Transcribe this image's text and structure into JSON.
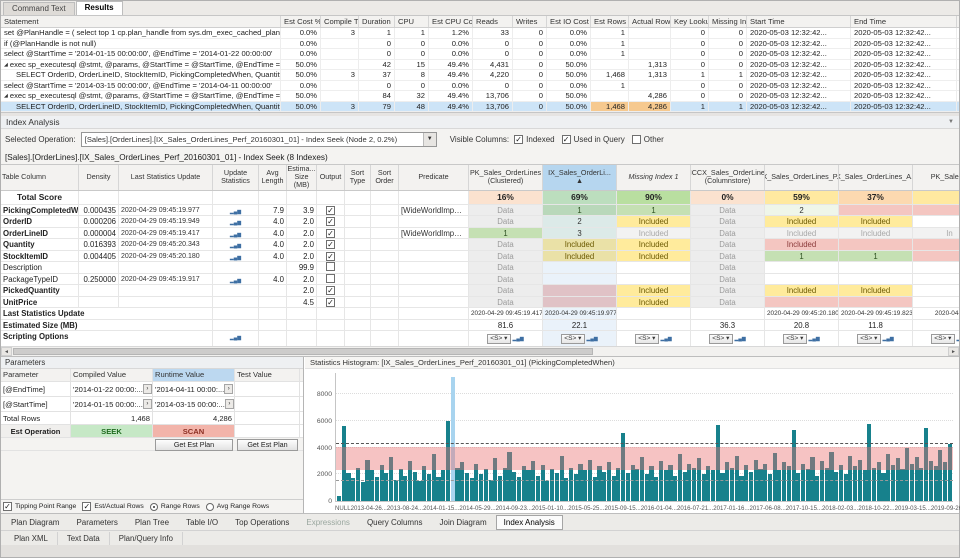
{
  "doc_tabs": {
    "items": [
      "Command Text",
      "Results"
    ],
    "active": "Results"
  },
  "statement_grid": {
    "columns": [
      "Statement",
      "Est Cost %",
      "Compile Time",
      "Duration",
      "CPU",
      "Est CPU Cost %",
      "Reads",
      "Writes",
      "Est IO Cost %",
      "Est Rows",
      "Actual Rows",
      "Key Lookups",
      "Missing Ind...",
      "Start Time",
      "End Time"
    ],
    "rows": [
      {
        "stmt": "set @PlanHandle = ( select top 1 cp.plan_handle from sys.dm_exec_cached_plans AS cp cross apply sys.dm_e...",
        "vals": [
          "0.0%",
          "3",
          "1",
          "1",
          "1.2%",
          "33",
          "0",
          "0.0%",
          "1",
          "",
          "0",
          "0",
          "2020-05-03 12:32:42...",
          "2020-05-03 12:32:42..."
        ]
      },
      {
        "stmt": "if (@PlanHandle is not null)",
        "vals": [
          "0.0%",
          "",
          "0",
          "0",
          "0.0%",
          "0",
          "0",
          "0.0%",
          "1",
          "",
          "0",
          "0",
          "2020-05-03 12:32:42...",
          "2020-05-03 12:32:42..."
        ]
      },
      {
        "stmt": "select @StartTime = '2014-01-15 00:00:00', @EndTime = '2014-01-22 00:00:00'",
        "vals": [
          "0.0%",
          "",
          "0",
          "0",
          "0.0%",
          "0",
          "0",
          "0.0%",
          "1",
          "",
          "0",
          "0",
          "2020-05-03 12:32:42...",
          "2020-05-03 12:32:42..."
        ]
      },
      {
        "stmt": "exec sp_executesql @stmt, @params, @StartTime = @StartTime, @EndTime = @EndTime",
        "expander": true,
        "vals": [
          "50.0%",
          "",
          "42",
          "15",
          "49.4%",
          "4,431",
          "0",
          "50.0%",
          "",
          "1,313",
          "0",
          "0",
          "2020-05-03 12:32:42...",
          "2020-05-03 12:32:42..."
        ]
      },
      {
        "stmt": "SELECT OrderID, OrderLineID, StockItemID, PickingCompletedWhen, Quantity, PickedQuantity, UnitPrice F...",
        "indent": 1,
        "vals": [
          "50.0%",
          "3",
          "37",
          "8",
          "49.4%",
          "4,220",
          "0",
          "50.0%",
          "1,468",
          "1,313",
          "1",
          "1",
          "2020-05-03 12:32:42...",
          "2020-05-03 12:32:42..."
        ]
      },
      {
        "stmt": "select @StartTime = '2014-03-15 00:00:00', @EndTime = '2014-04-11 00:00:00'",
        "vals": [
          "0.0%",
          "",
          "0",
          "0",
          "0.0%",
          "0",
          "0",
          "0.0%",
          "1",
          "",
          "0",
          "0",
          "2020-05-03 12:32:42...",
          "2020-05-03 12:32:42..."
        ]
      },
      {
        "stmt": "exec sp_executesql @stmt, @params, @StartTime = @StartTime, @EndTime = @EndTime",
        "expander": true,
        "vals": [
          "50.0%",
          "",
          "84",
          "32",
          "49.4%",
          "13,706",
          "0",
          "50.0%",
          "",
          "4,286",
          "0",
          "0",
          "2020-05-03 12:32:42...",
          "2020-05-03 12:32:42..."
        ]
      },
      {
        "stmt": "SELECT OrderID, OrderLineID, StockItemID, PickingCompletedWhen, Quantity, PickedQuantity, UnitPrice F...",
        "indent": 1,
        "selected": true,
        "hl_cols": [
          8,
          9
        ],
        "vals": [
          "50.0%",
          "3",
          "79",
          "48",
          "49.4%",
          "13,706",
          "0",
          "50.0%",
          "1,468",
          "4,286",
          "1",
          "1",
          "2020-05-03 12:32:42...",
          "2020-05-03 12:32:42..."
        ]
      }
    ]
  },
  "index_analysis": {
    "title": "Index Analysis",
    "selected_operation_label": "Selected Operation:",
    "selected_operation": "[Sales].[OrderLines].[IX_Sales_OrderLines_Perf_20160301_01] - Index Seek (Node 2,  0.2%)",
    "visible_columns_label": "Visible Columns:",
    "visible_columns": [
      {
        "label": "Indexed",
        "checked": true
      },
      {
        "label": "Used in Query",
        "checked": true
      },
      {
        "label": "Other",
        "checked": false
      }
    ],
    "subtitle": "[Sales].[OrderLines].[IX_Sales_OrderLines_Perf_20160301_01] - Index Seek (8 Indexes)",
    "left_columns": [
      "Table Column",
      "Density",
      "Last Statistics Update",
      "Update Statistics",
      "Avg Length",
      "Estima... Size (MB)",
      "Output",
      "Sort Type",
      "Sort Order",
      "Predicate"
    ],
    "total_score_label": "Total Score",
    "indexes": [
      {
        "name": "PK_Sales_OrderLines (Clustered)",
        "score": "16%",
        "score_color": "#fbe2cf",
        "selected": false
      },
      {
        "name": "IX_Sales_OrderLi...",
        "indicator": "▲",
        "score": "69%",
        "score_color": "#c9e7b8",
        "selected": true
      },
      {
        "name": "Missing Index 1",
        "score": "90%",
        "score_color": "#b9dfa0",
        "selected": false,
        "italic": true
      },
      {
        "name": "NCCX_Sales_OrderLines (Columnstore)",
        "score": "0%",
        "score_color": "#fbe2cf",
        "selected": false
      },
      {
        "name": "IX_Sales_OrderLines_P...",
        "score": "59%",
        "score_color": "#ffe9a0",
        "selected": false
      },
      {
        "name": "IX_Sales_OrderLines_A...",
        "score": "37%",
        "score_color": "#fcd9b0",
        "selected": false
      },
      {
        "name": "PK_Sales...",
        "score": "",
        "score_color": "#ffe9a0",
        "selected": false
      }
    ],
    "rows": [
      {
        "col": "PickingCompletedWhen",
        "bold": true,
        "density": "0.000435",
        "lsu": "2020-04-29 09:45:19.977",
        "avg": "7.9",
        "size": "3.9",
        "output": true,
        "sort_type": "",
        "sort_order": "",
        "predicate": "[WideWorldImporters].[Sal...",
        "cells": [
          {
            "t": "Data",
            "c": "data"
          },
          {
            "t": "1",
            "c": "key1"
          },
          {
            "t": "1",
            "c": "key1"
          },
          {
            "t": "Data",
            "c": "data"
          },
          {
            "t": "2",
            "c": "key2"
          },
          {
            "t": "",
            "c": "miss"
          },
          {
            "t": "",
            "c": "miss"
          }
        ]
      },
      {
        "col": "OrderID",
        "bold": true,
        "density": "0.000206",
        "lsu": "2020-04-29 09:45:19.949",
        "avg": "4.0",
        "size": "2.0",
        "output": true,
        "sort_type": "",
        "sort_order": "",
        "predicate": "",
        "cells": [
          {
            "t": "Data",
            "c": "data"
          },
          {
            "t": "2",
            "c": "key2"
          },
          {
            "t": "Included",
            "c": "incl"
          },
          {
            "t": "Data",
            "c": "data"
          },
          {
            "t": "Included",
            "c": "incl"
          },
          {
            "t": "Included",
            "c": "incl"
          },
          {
            "t": "",
            "c": "none"
          }
        ]
      },
      {
        "col": "OrderLineID",
        "bold": true,
        "density": "0.000004",
        "lsu": "2020-04-29 09:45:19.417",
        "avg": "4.0",
        "size": "2.0",
        "output": true,
        "sort_type": "",
        "sort_order": "",
        "predicate": "[WideWorldImporters].[Sal...",
        "cells": [
          {
            "t": "1",
            "c": "key1"
          },
          {
            "t": "3",
            "c": "key2"
          },
          {
            "t": "Included",
            "c": "inclg"
          },
          {
            "t": "Data",
            "c": "data"
          },
          {
            "t": "Included",
            "c": "inclg"
          },
          {
            "t": "Included",
            "c": "inclg"
          },
          {
            "t": "In",
            "c": "inclg"
          }
        ]
      },
      {
        "col": "Quantity",
        "bold": true,
        "density": "0.016393",
        "lsu": "2020-04-29 09:45:20.343",
        "avg": "4.0",
        "size": "2.0",
        "output": true,
        "sort_type": "",
        "sort_order": "",
        "predicate": "",
        "cells": [
          {
            "t": "Data",
            "c": "data"
          },
          {
            "t": "Included",
            "c": "incl"
          },
          {
            "t": "Included",
            "c": "incl"
          },
          {
            "t": "Data",
            "c": "data"
          },
          {
            "t": "Included",
            "c": "miss"
          },
          {
            "t": "",
            "c": "miss"
          },
          {
            "t": "",
            "c": "miss"
          }
        ]
      },
      {
        "col": "StockItemID",
        "bold": true,
        "density": "0.004405",
        "lsu": "2020-04-29 09:45:20.180",
        "avg": "4.0",
        "size": "2.0",
        "output": true,
        "sort_type": "",
        "sort_order": "",
        "predicate": "",
        "cells": [
          {
            "t": "Data",
            "c": "data"
          },
          {
            "t": "Included",
            "c": "incl"
          },
          {
            "t": "Included",
            "c": "incl"
          },
          {
            "t": "Data",
            "c": "data"
          },
          {
            "t": "1",
            "c": "key1"
          },
          {
            "t": "1",
            "c": "key1"
          },
          {
            "t": "",
            "c": "miss"
          }
        ]
      },
      {
        "col": "Description",
        "bold": false,
        "density": "",
        "lsu": "",
        "avg": "",
        "size": "99.9",
        "output": false,
        "sort_type": "",
        "sort_order": "",
        "predicate": "",
        "cells": [
          {
            "t": "Data",
            "c": "data"
          },
          {
            "t": "",
            "c": "none"
          },
          {
            "t": "",
            "c": "none"
          },
          {
            "t": "Data",
            "c": "data"
          },
          {
            "t": "",
            "c": "none"
          },
          {
            "t": "",
            "c": "none"
          },
          {
            "t": "",
            "c": "none"
          }
        ]
      },
      {
        "col": "PackageTypeID",
        "bold": false,
        "density": "0.250000",
        "lsu": "2020-04-29 09:45:19.917",
        "avg": "4.0",
        "size": "2.0",
        "output": false,
        "sort_type": "",
        "sort_order": "",
        "predicate": "",
        "cells": [
          {
            "t": "Data",
            "c": "data"
          },
          {
            "t": "",
            "c": "none"
          },
          {
            "t": "",
            "c": "none"
          },
          {
            "t": "Data",
            "c": "data"
          },
          {
            "t": "",
            "c": "none"
          },
          {
            "t": "",
            "c": "none"
          },
          {
            "t": "",
            "c": "none"
          }
        ]
      },
      {
        "col": "PickedQuantity",
        "bold": true,
        "density": "",
        "lsu": "",
        "avg": "",
        "size": "2.0",
        "output": true,
        "sort_type": "",
        "sort_order": "",
        "predicate": "",
        "cells": [
          {
            "t": "Data",
            "c": "data"
          },
          {
            "t": "",
            "c": "miss"
          },
          {
            "t": "Included",
            "c": "incl"
          },
          {
            "t": "Data",
            "c": "data"
          },
          {
            "t": "Included",
            "c": "incl"
          },
          {
            "t": "Included",
            "c": "incl"
          },
          {
            "t": "",
            "c": "none"
          }
        ]
      },
      {
        "col": "UnitPrice",
        "bold": true,
        "density": "",
        "lsu": "",
        "avg": "",
        "size": "4.5",
        "output": true,
        "sort_type": "",
        "sort_order": "",
        "predicate": "",
        "cells": [
          {
            "t": "Data",
            "c": "data"
          },
          {
            "t": "",
            "c": "miss"
          },
          {
            "t": "Included",
            "c": "incl"
          },
          {
            "t": "Data",
            "c": "data"
          },
          {
            "t": "",
            "c": "miss"
          },
          {
            "t": "",
            "c": "miss"
          },
          {
            "t": "",
            "c": "none"
          }
        ]
      }
    ],
    "footer": {
      "lsu_label": "Last Statistics Update",
      "lsu": [
        "2020-04-29 09:45:19.417",
        "2020-04-29 09:45:19.977",
        "",
        "",
        "2020-04-29 09:45:20.180",
        "2020-04-29 09:45:19.823",
        "2020-04-2"
      ],
      "size_label": "Estimated Size (MB)",
      "sizes": [
        "81.6",
        "22.1",
        "",
        "36.3",
        "20.8",
        "11.8",
        ""
      ],
      "script_label": "Scripting Options",
      "script_button": "<S>",
      "script_dd": "▾"
    }
  },
  "parameters": {
    "title": "Parameters",
    "columns": [
      "Parameter",
      "Compiled Value",
      "Runtime Value",
      "Test Value"
    ],
    "rows": [
      {
        "name": "[@EndTime]",
        "compiled": "'2014-01-22 00:00:...",
        "runtime": "'2014-04-11 00:00:...",
        "test": ""
      },
      {
        "name": "[@StartTime]",
        "compiled": "'2014-01-15 00:00:...",
        "runtime": "'2014-03-15 00:00:...",
        "test": ""
      }
    ],
    "total_rows": {
      "label": "Total Rows",
      "compiled": "1,468",
      "runtime": "4,286",
      "test": ""
    },
    "est_operation": {
      "label": "Est Operation",
      "compiled": "SEEK",
      "runtime": "SCAN",
      "test": ""
    },
    "get_est_plan_label": "Get Est Plan",
    "options": [
      {
        "label": "Tipping Point Range",
        "type": "checkbox",
        "checked": true
      },
      {
        "label": "Est/Actual Rows",
        "type": "checkbox",
        "checked": true
      },
      {
        "label": "Range Rows",
        "type": "radio",
        "checked": true
      },
      {
        "label": "Avg Range Rows",
        "type": "radio",
        "checked": false
      }
    ]
  },
  "chart_data": {
    "type": "bar",
    "title": "Statistics Histogram: [IX_Sales_OrderLines_Perf_20160301_01] (PickingCompletedWhen)",
    "xlabel": "",
    "ylabel": "",
    "ylim": [
      0,
      9600
    ],
    "y_ticks": [
      0,
      2000,
      4000,
      6000,
      8000
    ],
    "x_tick_labels": [
      "NULL",
      "2013-04-26...",
      "2013-08-24...",
      "2014-01-15...",
      "2014-05-29...",
      "2014-09-23...",
      "2015-01-10...",
      "2015-05-25...",
      "2015-09-15...",
      "2016-01-04...",
      "2016-07-21...",
      "2017-01-16...",
      "2017-06-08...",
      "2017-10-15...",
      "2018-02-03...",
      "2018-10-22...",
      "2019-03-15...",
      "2019-09-26...",
      "2020-04-28..."
    ],
    "values": [
      400,
      5650,
      2100,
      1700,
      2500,
      1400,
      3100,
      2300,
      1800,
      2700,
      2100,
      3300,
      1600,
      2400,
      1900,
      3000,
      2200,
      1500,
      2600,
      2000,
      3500,
      1800,
      2300,
      6000,
      9300,
      2500,
      2900,
      2100,
      1700,
      2800,
      2000,
      2400,
      1600,
      3200,
      1900,
      2500,
      3700,
      2200,
      1800,
      2600,
      2300,
      3000,
      1900,
      2700,
      1500,
      2400,
      2100,
      3400,
      1700,
      2500,
      2000,
      2800,
      2300,
      3100,
      1800,
      2600,
      2200,
      2900,
      1900,
      2500,
      5100,
      2100,
      2700,
      2400,
      3300,
      2000,
      2600,
      1800,
      3000,
      2300,
      2700,
      1900,
      3500,
      2200,
      2800,
      2500,
      3200,
      2000,
      2600,
      2300,
      5700,
      2100,
      2900,
      2500,
      3400,
      1900,
      2700,
      2200,
      3100,
      2400,
      2800,
      2000,
      3600,
      2300,
      2900,
      2600,
      5300,
      2100,
      2800,
      2400,
      3300,
      1900,
      3000,
      2500,
      3700,
      2200,
      2700,
      2000,
      3400,
      2600,
      3100,
      2300,
      5800,
      2500,
      2900,
      2100,
      3500,
      2700,
      3200,
      2400,
      4000,
      2800,
      3300,
      2500,
      5500,
      3000,
      2600,
      3800,
      2900,
      4300
    ],
    "selected_bar_index": 24,
    "annotations": {
      "tipping_point_band": [
        2350,
        4050
      ],
      "actual_rows_line": 4286,
      "est_rows_line": 1468
    },
    "legend": "none",
    "grid": true,
    "colors": {
      "bar": "#17818c",
      "selected_bar": "#a8d4ef",
      "band": "rgba(233,113,113,0.42)",
      "actual_line": "#555555",
      "est_line": "#999999"
    }
  },
  "view_tabs": {
    "items": [
      "Plan Diagram",
      "Parameters",
      "Plan Tree",
      "Table I/O",
      "Top Operations",
      "Expressions",
      "Query Columns",
      "Join Diagram",
      "Index Analysis"
    ],
    "active": "Index Analysis",
    "disabled": [
      "Expressions"
    ]
  },
  "status_tabs": [
    "Plan XML",
    "Text Data",
    "Plan/Query Info"
  ]
}
